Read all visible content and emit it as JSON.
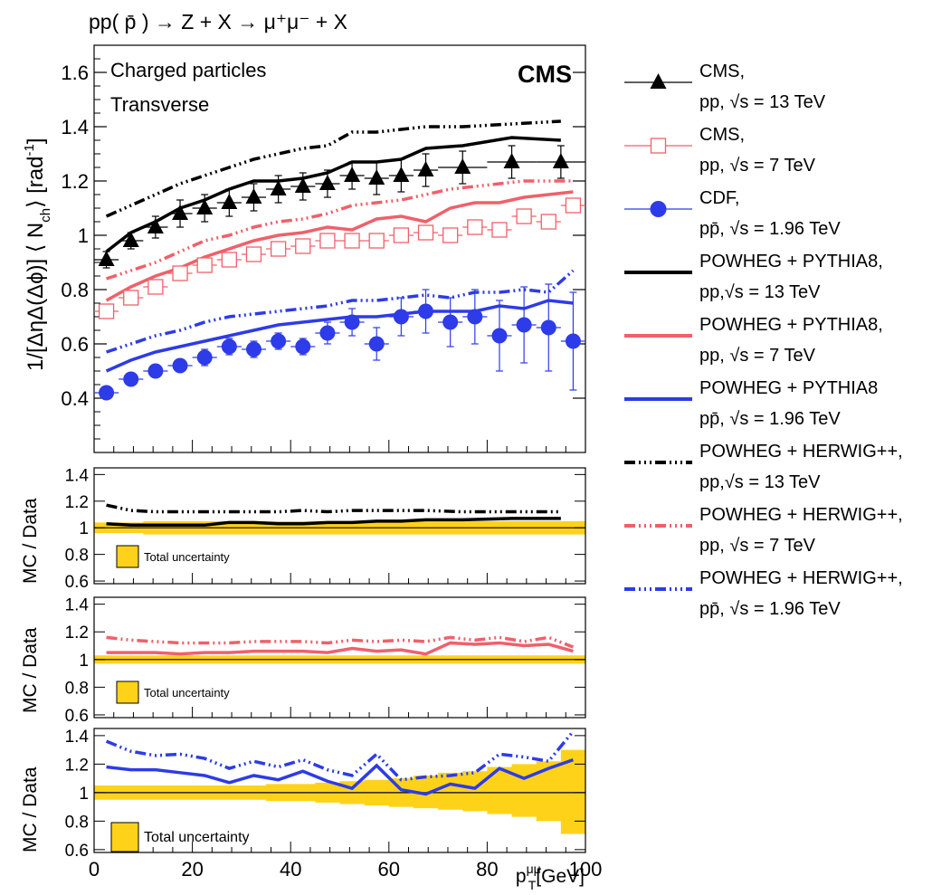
{
  "chart_data": {
    "type": "scatter",
    "title": "pp( p̄ ) → Z + X → μ⁺μ⁻ + X",
    "annotations": {
      "cms_label": "CMS",
      "line1": "Charged particles",
      "line2": "Transverse"
    },
    "xlabel_main": "p",
    "xlabel_sup": "μμ",
    "xlabel_sub": "T",
    "xlabel_unit": "[GeV]",
    "ylabel_main": "1/[ΔηΔ(Δϕ)] ⟨ N",
    "ylabel_sub": "ch",
    "ylabel_end": "⟩ [rad",
    "ylabel_sup": "-1",
    "ylabel_close": "]",
    "ratio_ylabel": "MC / Data",
    "uncertainty_label": "Total uncertainty",
    "xlim": [
      0,
      100
    ],
    "ylim_main": [
      0.2,
      1.7
    ],
    "ylim_ratio": [
      0.58,
      1.45
    ],
    "x_ticks": [
      "0",
      "20",
      "40",
      "60",
      "80",
      "100"
    ],
    "y_ticks_main": [
      "0.4",
      "0.6",
      "0.8",
      "1",
      "1.2",
      "1.4",
      "1.6"
    ],
    "y_ticks_ratio": [
      "0.6",
      "0.8",
      "1",
      "1.2",
      "1.4"
    ],
    "legend": [
      {
        "l1": "CMS,",
        "l2": "pp, √s = 13 TeV"
      },
      {
        "l1": "CMS,",
        "l2": "pp, √s = 7 TeV"
      },
      {
        "l1": "CDF,",
        "l2": "pp̄, √s = 1.96 TeV"
      },
      {
        "l1": "POWHEG + PYTHIA8,",
        "l2": "pp,√s = 13 TeV"
      },
      {
        "l1": "POWHEG + PYTHIA8,",
        "l2": "pp, √s = 7 TeV"
      },
      {
        "l1": "POWHEG + PYTHIA8",
        "l2": "pp̄, √s = 1.96 TeV"
      },
      {
        "l1": "POWHEG + HERWIG++,",
        "l2": "pp,√s = 13 TeV"
      },
      {
        "l1": "POWHEG + HERWIG++,",
        "l2": "pp, √s = 7 TeV"
      },
      {
        "l1": "POWHEG + HERWIG++,",
        "l2": "pp̄, √s = 1.96 TeV"
      }
    ],
    "colors": {
      "cms13": "#000000",
      "cms7": "#f0606a",
      "cdf": "#2d3be8",
      "band": "#ffd21a"
    },
    "data": {
      "cms13": {
        "x": [
          2.5,
          7.5,
          12.5,
          17.5,
          22.5,
          27.5,
          32.5,
          37.5,
          42.5,
          47.5,
          52.5,
          57.5,
          62.5,
          67.5,
          75,
          85,
          95
        ],
        "xe": [
          2.5,
          2.5,
          2.5,
          2.5,
          2.5,
          2.5,
          2.5,
          2.5,
          2.5,
          2.5,
          2.5,
          2.5,
          2.5,
          2.5,
          5,
          5,
          5
        ],
        "y": [
          0.91,
          0.98,
          1.03,
          1.08,
          1.1,
          1.12,
          1.14,
          1.17,
          1.18,
          1.19,
          1.22,
          1.21,
          1.22,
          1.24,
          1.25,
          1.27,
          1.27
        ],
        "ye": [
          0.03,
          0.03,
          0.04,
          0.05,
          0.05,
          0.05,
          0.05,
          0.05,
          0.05,
          0.05,
          0.05,
          0.06,
          0.06,
          0.06,
          0.06,
          0.06,
          0.06
        ]
      },
      "cms7": {
        "x": [
          2.5,
          7.5,
          12.5,
          17.5,
          22.5,
          27.5,
          32.5,
          37.5,
          42.5,
          47.5,
          52.5,
          57.5,
          62.5,
          67.5,
          72.5,
          77.5,
          82.5,
          87.5,
          92.5,
          97.5
        ],
        "y": [
          0.72,
          0.77,
          0.81,
          0.86,
          0.89,
          0.91,
          0.93,
          0.95,
          0.96,
          0.98,
          0.98,
          0.98,
          1.0,
          1.01,
          1.0,
          1.03,
          1.02,
          1.07,
          1.05,
          1.11
        ],
        "ye": [
          0.02,
          0.02,
          0.02,
          0.02,
          0.02,
          0.02,
          0.02,
          0.02,
          0.02,
          0.02,
          0.02,
          0.02,
          0.02,
          0.02,
          0.02,
          0.02,
          0.02,
          0.02,
          0.02,
          0.02
        ]
      },
      "cdf": {
        "x": [
          2.5,
          7.5,
          12.5,
          17.5,
          22.5,
          27.5,
          32.5,
          37.5,
          42.5,
          47.5,
          52.5,
          57.5,
          62.5,
          67.5,
          72.5,
          77.5,
          82.5,
          87.5,
          92.5,
          97.5
        ],
        "y": [
          0.42,
          0.47,
          0.5,
          0.52,
          0.55,
          0.59,
          0.58,
          0.61,
          0.59,
          0.64,
          0.68,
          0.6,
          0.7,
          0.72,
          0.68,
          0.7,
          0.63,
          0.67,
          0.66,
          0.61
        ],
        "ye": [
          0.01,
          0.02,
          0.02,
          0.02,
          0.03,
          0.03,
          0.03,
          0.03,
          0.03,
          0.04,
          0.05,
          0.06,
          0.07,
          0.08,
          0.09,
          0.1,
          0.13,
          0.14,
          0.16,
          0.18
        ]
      },
      "pythia13": {
        "x": [
          2.5,
          7.5,
          12.5,
          17.5,
          22.5,
          27.5,
          32.5,
          37.5,
          42.5,
          47.5,
          52.5,
          57.5,
          62.5,
          67.5,
          75,
          85,
          95
        ],
        "y": [
          0.94,
          1.01,
          1.05,
          1.1,
          1.13,
          1.17,
          1.2,
          1.2,
          1.21,
          1.23,
          1.27,
          1.27,
          1.28,
          1.32,
          1.33,
          1.36,
          1.35
        ]
      },
      "herwig13": {
        "x": [
          2.5,
          7.5,
          12.5,
          17.5,
          22.5,
          27.5,
          32.5,
          37.5,
          42.5,
          47.5,
          52.5,
          57.5,
          62.5,
          67.5,
          75,
          85,
          95
        ],
        "y": [
          1.07,
          1.11,
          1.15,
          1.19,
          1.22,
          1.25,
          1.28,
          1.3,
          1.32,
          1.33,
          1.38,
          1.38,
          1.39,
          1.4,
          1.4,
          1.41,
          1.42
        ]
      },
      "pythia7": {
        "x": [
          2.5,
          7.5,
          12.5,
          17.5,
          22.5,
          27.5,
          32.5,
          37.5,
          42.5,
          47.5,
          52.5,
          57.5,
          62.5,
          67.5,
          72.5,
          77.5,
          82.5,
          87.5,
          92.5,
          97.5
        ],
        "y": [
          0.76,
          0.81,
          0.85,
          0.88,
          0.92,
          0.95,
          0.98,
          1.0,
          1.01,
          1.03,
          1.02,
          1.06,
          1.07,
          1.05,
          1.1,
          1.12,
          1.12,
          1.14,
          1.15,
          1.16
        ]
      },
      "herwig7": {
        "x": [
          2.5,
          7.5,
          12.5,
          17.5,
          22.5,
          27.5,
          32.5,
          37.5,
          42.5,
          47.5,
          52.5,
          57.5,
          62.5,
          67.5,
          72.5,
          77.5,
          82.5,
          87.5,
          92.5,
          97.5
        ],
        "y": [
          0.84,
          0.87,
          0.9,
          0.94,
          0.98,
          1.0,
          1.03,
          1.05,
          1.06,
          1.08,
          1.11,
          1.12,
          1.13,
          1.15,
          1.17,
          1.18,
          1.19,
          1.2,
          1.2,
          1.2
        ]
      },
      "pythia196": {
        "x": [
          2.5,
          7.5,
          12.5,
          17.5,
          22.5,
          27.5,
          32.5,
          37.5,
          42.5,
          47.5,
          52.5,
          57.5,
          62.5,
          67.5,
          72.5,
          77.5,
          82.5,
          87.5,
          92.5,
          97.5
        ],
        "y": [
          0.5,
          0.54,
          0.57,
          0.59,
          0.61,
          0.63,
          0.65,
          0.67,
          0.68,
          0.69,
          0.7,
          0.7,
          0.71,
          0.72,
          0.72,
          0.72,
          0.74,
          0.73,
          0.76,
          0.75
        ]
      },
      "herwig196": {
        "x": [
          2.5,
          7.5,
          12.5,
          17.5,
          22.5,
          27.5,
          32.5,
          37.5,
          42.5,
          47.5,
          52.5,
          57.5,
          62.5,
          67.5,
          72.5,
          77.5,
          82.5,
          87.5,
          92.5,
          97.5
        ],
        "y": [
          0.57,
          0.6,
          0.63,
          0.65,
          0.68,
          0.7,
          0.71,
          0.72,
          0.73,
          0.74,
          0.76,
          0.76,
          0.77,
          0.78,
          0.77,
          0.79,
          0.79,
          0.8,
          0.79,
          0.87
        ]
      }
    },
    "ratios": {
      "r13": {
        "x": [
          2.5,
          7.5,
          12.5,
          17.5,
          22.5,
          27.5,
          32.5,
          37.5,
          42.5,
          47.5,
          52.5,
          57.5,
          62.5,
          67.5,
          75,
          85,
          95
        ],
        "pythia": [
          1.03,
          1.02,
          1.02,
          1.02,
          1.02,
          1.04,
          1.04,
          1.03,
          1.03,
          1.04,
          1.04,
          1.05,
          1.05,
          1.06,
          1.06,
          1.07,
          1.07
        ],
        "herwig": [
          1.17,
          1.13,
          1.12,
          1.12,
          1.12,
          1.12,
          1.12,
          1.12,
          1.13,
          1.12,
          1.13,
          1.13,
          1.13,
          1.13,
          1.12,
          1.12,
          1.12
        ],
        "unc_lo": [
          0.96,
          0.96,
          0.95,
          0.95,
          0.95,
          0.95,
          0.95,
          0.95,
          0.95,
          0.95,
          0.95,
          0.95,
          0.95,
          0.95,
          0.95,
          0.95,
          0.95
        ],
        "unc_hi": [
          1.04,
          1.04,
          1.05,
          1.05,
          1.05,
          1.05,
          1.05,
          1.05,
          1.05,
          1.05,
          1.05,
          1.05,
          1.05,
          1.05,
          1.05,
          1.05,
          1.05
        ]
      },
      "r7": {
        "x": [
          2.5,
          7.5,
          12.5,
          17.5,
          22.5,
          27.5,
          32.5,
          37.5,
          42.5,
          47.5,
          52.5,
          57.5,
          62.5,
          67.5,
          72.5,
          77.5,
          82.5,
          87.5,
          92.5,
          97.5
        ],
        "pythia": [
          1.05,
          1.05,
          1.05,
          1.04,
          1.05,
          1.05,
          1.06,
          1.06,
          1.06,
          1.05,
          1.08,
          1.06,
          1.07,
          1.04,
          1.12,
          1.11,
          1.12,
          1.1,
          1.11,
          1.06
        ],
        "herwig": [
          1.16,
          1.14,
          1.13,
          1.12,
          1.12,
          1.12,
          1.13,
          1.13,
          1.13,
          1.12,
          1.14,
          1.13,
          1.14,
          1.13,
          1.16,
          1.14,
          1.16,
          1.13,
          1.16,
          1.09
        ],
        "unc_lo": [
          0.97,
          0.97,
          0.97,
          0.97,
          0.97,
          0.97,
          0.97,
          0.97,
          0.97,
          0.97,
          0.97,
          0.97,
          0.97,
          0.97,
          0.97,
          0.97,
          0.97,
          0.97,
          0.97,
          0.97
        ],
        "unc_hi": [
          1.03,
          1.03,
          1.03,
          1.03,
          1.03,
          1.03,
          1.03,
          1.03,
          1.03,
          1.03,
          1.03,
          1.03,
          1.03,
          1.03,
          1.03,
          1.03,
          1.03,
          1.03,
          1.03,
          1.03
        ]
      },
      "r196": {
        "x": [
          2.5,
          7.5,
          12.5,
          17.5,
          22.5,
          27.5,
          32.5,
          37.5,
          42.5,
          47.5,
          52.5,
          57.5,
          62.5,
          67.5,
          72.5,
          77.5,
          82.5,
          87.5,
          92.5,
          97.5
        ],
        "pythia": [
          1.18,
          1.16,
          1.16,
          1.14,
          1.12,
          1.07,
          1.12,
          1.09,
          1.15,
          1.08,
          1.03,
          1.19,
          1.02,
          0.99,
          1.06,
          1.03,
          1.17,
          1.1,
          1.17,
          1.23
        ],
        "herwig": [
          1.36,
          1.29,
          1.26,
          1.27,
          1.24,
          1.17,
          1.22,
          1.18,
          1.23,
          1.16,
          1.12,
          1.27,
          1.09,
          1.11,
          1.12,
          1.14,
          1.27,
          1.25,
          1.22,
          1.43
        ],
        "unc_lo": [
          0.95,
          0.95,
          0.95,
          0.95,
          0.95,
          0.95,
          0.95,
          0.94,
          0.94,
          0.93,
          0.92,
          0.91,
          0.9,
          0.89,
          0.88,
          0.87,
          0.85,
          0.83,
          0.8,
          0.71
        ],
        "unc_hi": [
          1.05,
          1.05,
          1.05,
          1.05,
          1.05,
          1.05,
          1.05,
          1.06,
          1.06,
          1.07,
          1.08,
          1.09,
          1.1,
          1.12,
          1.14,
          1.15,
          1.18,
          1.2,
          1.22,
          1.3
        ]
      }
    }
  }
}
